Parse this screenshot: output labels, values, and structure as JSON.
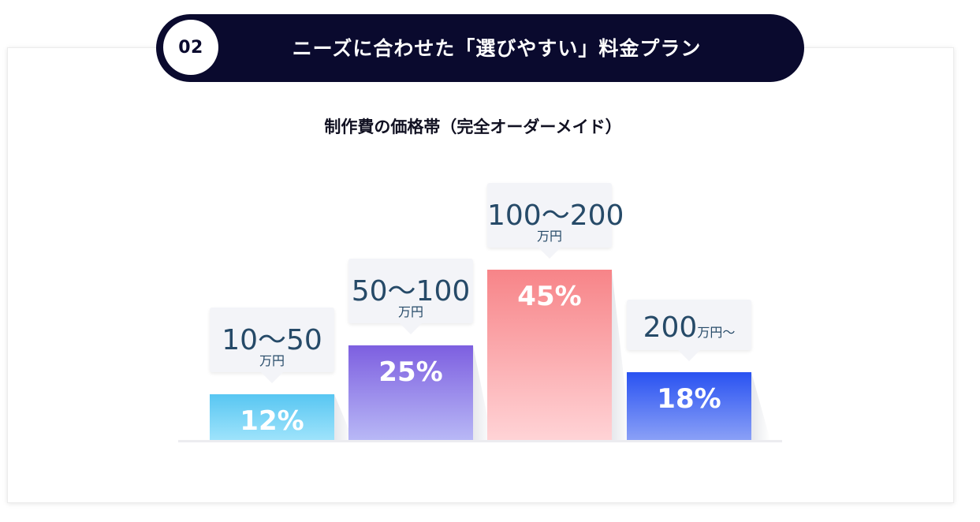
{
  "header": {
    "number": "02",
    "title": "ニーズに合わせた「選びやすい」料金プラン"
  },
  "chart_data": {
    "type": "bar",
    "title": "制作費の価格帯（完全オーダーメイド）",
    "categories": [
      "10〜50万円",
      "50〜100万円",
      "100〜200万円",
      "200万円〜"
    ],
    "values": [
      12,
      25,
      45,
      18
    ],
    "value_labels": [
      "12%",
      "25%",
      "45%",
      "18%"
    ],
    "unit": "%",
    "grid": false,
    "legend": "none",
    "ylim": [
      0,
      50
    ],
    "callouts": [
      {
        "range": "10〜50",
        "unit": "万円"
      },
      {
        "range": "50〜100",
        "unit": "万円"
      },
      {
        "range": "100〜200",
        "unit": "万円"
      },
      {
        "range": "200",
        "unit": "万円〜"
      }
    ],
    "colors": [
      [
        "#9ee3fb",
        "#58c6f2"
      ],
      [
        "#b8b8f6",
        "#7d5fe0"
      ],
      [
        "#ffd3d6",
        "#f78488"
      ],
      [
        "#8aa0f7",
        "#2952f1"
      ]
    ]
  }
}
